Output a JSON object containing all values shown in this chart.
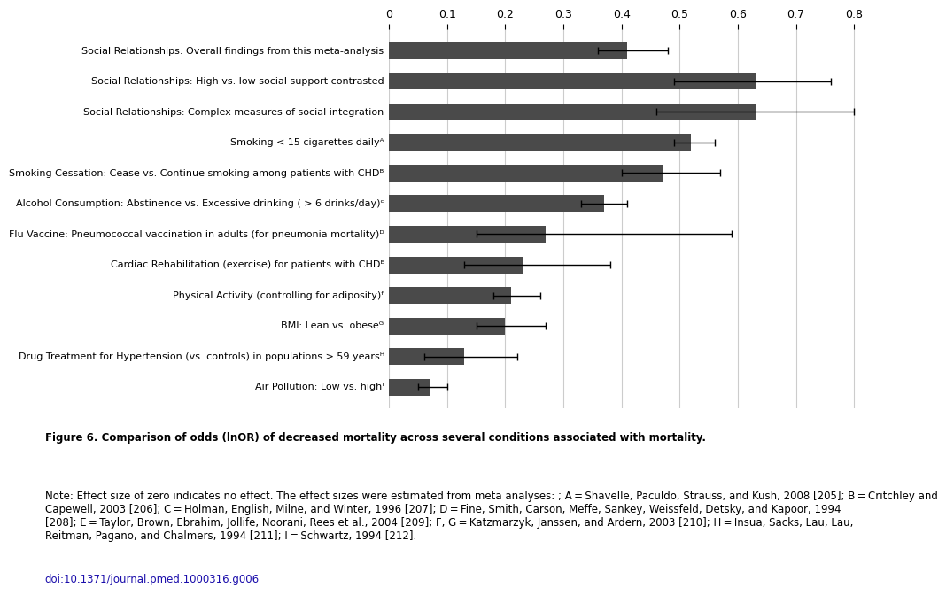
{
  "categories": [
    "Social Relationships: Overall findings from this meta-analysis",
    "Social Relationships: High vs. low social support contrasted",
    "Social Relationships: Complex measures of social integration",
    "Smoking < 15 cigarettes dailyᴬ",
    "Smoking Cessation: Cease vs. Continue smoking among patients with CHDᴮ",
    "Alcohol Consumption: Abstinence vs. Excessive drinking ( > 6 drinks/day)ᶜ",
    "Flu Vaccine: Pneumococcal vaccination in adults (for pneumonia mortality)ᴰ",
    "Cardiac Rehabilitation (exercise) for patients with CHDᴱ",
    "Physical Activity (controlling for adiposity)ᶠ",
    "BMI: Lean vs. obeseᴳ",
    "Drug Treatment for Hypertension (vs. controls) in populations > 59 yearsᴴ",
    "Air Pollution: Low vs. highᴵ"
  ],
  "values": [
    0.41,
    0.63,
    0.63,
    0.52,
    0.47,
    0.37,
    0.27,
    0.23,
    0.21,
    0.2,
    0.13,
    0.07
  ],
  "xerr_low": [
    0.05,
    0.14,
    0.17,
    0.03,
    0.07,
    0.04,
    0.12,
    0.1,
    0.03,
    0.05,
    0.07,
    0.02
  ],
  "xerr_high": [
    0.07,
    0.13,
    0.17,
    0.04,
    0.1,
    0.04,
    0.32,
    0.15,
    0.05,
    0.07,
    0.09,
    0.03
  ],
  "bar_color": "#4a4a4a",
  "bar_height": 0.55,
  "xlim": [
    0,
    0.85
  ],
  "xticks": [
    0,
    0.1,
    0.2,
    0.3,
    0.4,
    0.5,
    0.6,
    0.7,
    0.8
  ],
  "xtick_labels": [
    "0",
    "0.1",
    "0.2",
    "0.3",
    "0.4",
    "0.5",
    "0.6",
    "0.7",
    "0.8"
  ],
  "label_fontsize": 8.0,
  "tick_fontsize": 9,
  "background_color": "#ffffff",
  "caption_bold": "Figure 6. Comparison of odds (lnOR) of decreased mortality across several conditions associated with mortality.",
  "caption_normal": " Note: Effect size of zero indicates no effect. The effect sizes were estimated from meta analyses: ; A = Shavelle, Paculdo, Strauss, and Kush, 2008 [205]; B = Critchley and Capewell, 2003 [206]; C = Holman, English, Milne, and Winter, 1996 [207]; D = Fine, Smith, Carson, Meffe, Sankey, Weissfeld, Detsky, and Kapoor, 1994 [208]; E = Taylor, Brown, Ebrahim, Jollife, Noorani, Rees et al., 2004 [209]; F, G = Katzmarzyk, Janssen, and Ardern, 2003 [210]; H = Insua, Sacks, Lau, Lau, Reitman, Pagano, and Chalmers, 1994 [211]; I = Schwartz, 1994 [212].",
  "caption_doi": "doi:10.1371/journal.pmed.1000316.g006",
  "caption_fontsize": 8.5
}
